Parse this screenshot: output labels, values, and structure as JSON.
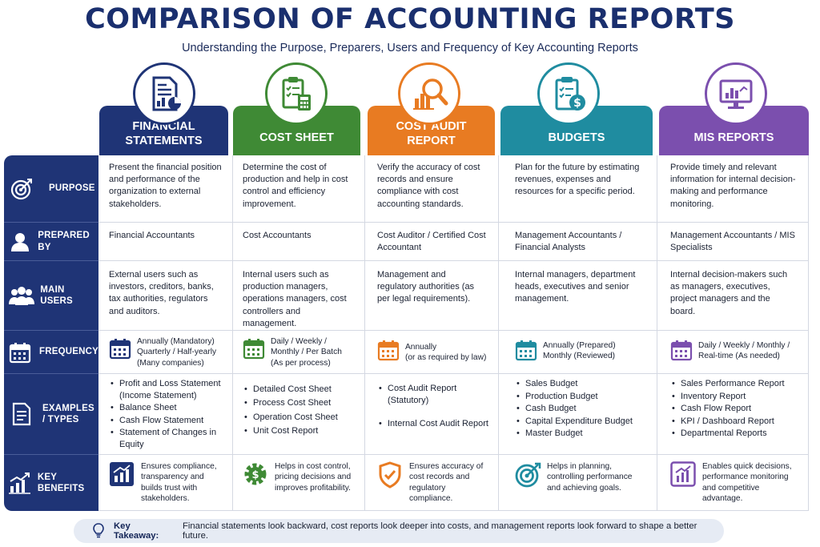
{
  "title": "COMPARISON OF ACCOUNTING REPORTS",
  "subtitle": "Understanding the Purpose, Preparers, Users and Frequency of Key Accounting Reports",
  "colors": {
    "navy": "#1f3476",
    "financial": "#1f3476",
    "cost_sheet": "#3f8a35",
    "cost_audit": "#e87b22",
    "budgets": "#1f8ca0",
    "mis": "#7b4fae"
  },
  "rows": {
    "purpose": "PURPOSE",
    "prepared_by": "PREPARED BY",
    "main_users": "MAIN USERS",
    "frequency": "FREQUENCY",
    "examples": "EXAMPLES / TYPES",
    "key_benefits": "KEY BENEFITS"
  },
  "row_icons": [
    "target-icon",
    "person-icon",
    "users-icon",
    "calendar-icon",
    "document-icon",
    "growth-chart-icon"
  ],
  "columns": [
    {
      "header": "FINANCIAL STATEMENTS",
      "icon": "financial-document-icon",
      "purpose": "Present the financial position and performance of the organization to external stakeholders.",
      "prepared_by": "Financial Accountants",
      "main_users": "External users such as investors, creditors, banks, tax authorities, regulators and auditors.",
      "frequency": "Annually (Mandatory) Quarterly / Half-yearly (Many companies)",
      "examples": [
        "Profit and Loss Statement (Income Statement)",
        "Balance Sheet",
        "Cash Flow Statement",
        "Statement of Changes in Equity"
      ],
      "benefit": "Ensures compliance, transparency and builds trust with stakeholders.",
      "benefit_icon": "bar-chart-icon"
    },
    {
      "header": "COST SHEET",
      "icon": "clipboard-calculator-icon",
      "purpose": "Determine the cost of production and help in cost control and efficiency improvement.",
      "prepared_by": "Cost Accountants",
      "main_users": "Internal users such as production managers, operations managers, cost controllers and management.",
      "frequency": "Daily / Weekly / Monthly / Per Batch (As per process)",
      "examples": [
        "Detailed Cost Sheet",
        "Process Cost Sheet",
        "Operation Cost Sheet",
        "Unit Cost Report"
      ],
      "benefit": "Helps in cost control, pricing decisions and improves profitability.",
      "benefit_icon": "gear-dollar-icon"
    },
    {
      "header": "COST AUDIT REPORT",
      "icon": "magnifier-chart-icon",
      "purpose": "Verify the accuracy of cost records and ensure compliance with cost accounting standards.",
      "prepared_by": "Cost Auditor / Certified Cost Accountant",
      "main_users": "Management and regulatory authorities (as per legal requirements).",
      "frequency": "Annually (or as required by law)",
      "examples": [
        "Cost Audit Report (Statutory)",
        "Internal Cost Audit Report"
      ],
      "benefit": "Ensures accuracy of cost records and regulatory compliance.",
      "benefit_icon": "shield-check-icon"
    },
    {
      "header": "BUDGETS",
      "icon": "clipboard-dollar-icon",
      "purpose": "Plan for the future by estimating revenues, expenses and resources for a specific period.",
      "prepared_by": "Management Accountants / Financial Analysts",
      "main_users": "Internal managers, department heads, executives and senior management.",
      "frequency": "Annually (Prepared) Monthly (Reviewed)",
      "examples": [
        "Sales Budget",
        "Production Budget",
        "Cash Budget",
        "Capital Expenditure Budget",
        "Master Budget"
      ],
      "benefit": "Helps in planning, controlling performance and achieving goals.",
      "benefit_icon": "target-arrow-icon"
    },
    {
      "header": "MIS REPORTS",
      "icon": "monitor-chart-icon",
      "purpose": "Provide timely and relevant information for internal decision-making and performance monitoring.",
      "prepared_by": "Management Accountants / MIS Specialists",
      "main_users": "Internal decision-makers such as managers, executives, project managers and the board.",
      "frequency": "Daily / Weekly / Monthly / Real-time (As needed)",
      "examples": [
        "Sales Performance Report",
        "Inventory Report",
        "Cash Flow Report",
        "KPI / Dashboard Report",
        "Departmental Reports"
      ],
      "benefit": "Enables quick decisions, performance monitoring and competitive advantage.",
      "benefit_icon": "trend-chart-icon"
    }
  ],
  "freq_lines": [
    [
      "Annually (Mandatory)",
      "Quarterly / Half-yearly",
      "(Many companies)"
    ],
    [
      "Daily / Weekly /",
      "Monthly / Per Batch",
      "(As per process)"
    ],
    [
      "Annually",
      "(or as required by law)"
    ],
    [
      "Annually (Prepared)",
      "Monthly (Reviewed)"
    ],
    [
      "Daily / Weekly / Monthly /",
      "Real-time (As needed)"
    ]
  ],
  "takeaway": {
    "label": "Key Takeaway:",
    "text": "Financial statements look backward, cost reports look deeper into costs, and management reports look forward to shape a better future.",
    "icon": "lightbulb-icon"
  }
}
